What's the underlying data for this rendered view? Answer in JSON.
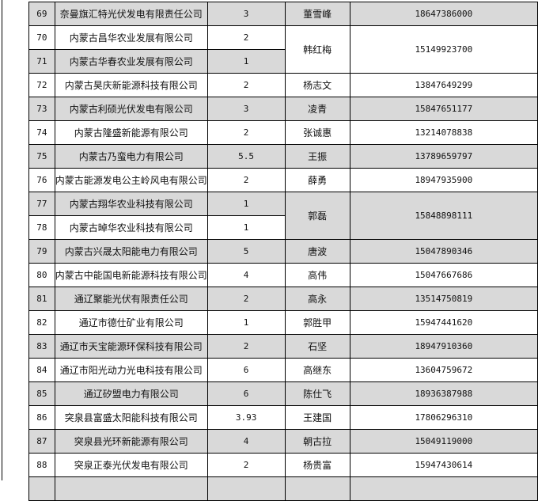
{
  "table": {
    "rows": [
      {
        "no": "69",
        "company": "奈曼旗汇特光伏发电有限责任公司",
        "capacity": "3",
        "contact": "董雪峰",
        "phone": "18647386000"
      },
      {
        "no": "70",
        "company": "内蒙古昌华农业发展有限公司",
        "capacity": "2",
        "contact": "韩红梅",
        "phone": "15149923700"
      },
      {
        "no": "71",
        "company": "内蒙古华春农业发展有限公司",
        "capacity": "1"
      },
      {
        "no": "72",
        "company": "内蒙古昊庆新能源科技有限公司",
        "capacity": "2",
        "contact": "杨志文",
        "phone": "13847649299"
      },
      {
        "no": "73",
        "company": "内蒙古利硕光伏发电有限公司",
        "capacity": "3",
        "contact": "凌青",
        "phone": "15847651177"
      },
      {
        "no": "74",
        "company": "内蒙古隆盛新能源有限公司",
        "capacity": "2",
        "contact": "张诚惠",
        "phone": "13214078838"
      },
      {
        "no": "75",
        "company": "内蒙古乃蛮电力有限公司",
        "capacity": "5.5",
        "contact": "王振",
        "phone": "13789659797"
      },
      {
        "no": "76",
        "company": "内蒙古能源发电公主岭风电有限公司",
        "capacity": "2",
        "contact": "薛勇",
        "phone": "18947935900"
      },
      {
        "no": "77",
        "company": "内蒙古翔华农业科技有限公司",
        "capacity": "1",
        "contact": "郭磊",
        "phone": "15848898111"
      },
      {
        "no": "78",
        "company": "内蒙古晫华农业科技有限公司",
        "capacity": "1"
      },
      {
        "no": "79",
        "company": "内蒙古兴晟太阳能电力有限公司",
        "capacity": "5",
        "contact": "唐波",
        "phone": "15047890346"
      },
      {
        "no": "80",
        "company": "内蒙古中能国电新能源科技有限公司",
        "capacity": "4",
        "contact": "高伟",
        "phone": "15047667686"
      },
      {
        "no": "81",
        "company": "通辽聚能光伏有限责任公司",
        "capacity": "2",
        "contact": "高永",
        "phone": "13514750819"
      },
      {
        "no": "82",
        "company": "通辽市德仕矿业有限公司",
        "capacity": "1",
        "contact": "郭胜甲",
        "phone": "15947441620"
      },
      {
        "no": "83",
        "company": "通辽市天宝能源环保科技有限公司",
        "capacity": "2",
        "contact": "石坚",
        "phone": "18947910360"
      },
      {
        "no": "84",
        "company": "通辽市阳光动力光电科技有限公司",
        "capacity": "6",
        "contact": "高继东",
        "phone": "13604759672"
      },
      {
        "no": "85",
        "company": "通辽矽盟电力有限公司",
        "capacity": "6",
        "contact": "陈仕飞",
        "phone": "18936387988"
      },
      {
        "no": "86",
        "company": "突泉县富盛太阳能科技有限公司",
        "capacity": "3.93",
        "contact": "王建国",
        "phone": "17806296310"
      },
      {
        "no": "87",
        "company": "突泉县光环新能源有限公司",
        "capacity": "4",
        "contact": "朝古拉",
        "phone": "15049119000"
      },
      {
        "no": "88",
        "company": "突泉正泰光伏发电有限公司",
        "capacity": "2",
        "contact": "杨贵富",
        "phone": "15947430614"
      }
    ]
  },
  "colors": {
    "row_shade": "#d9d9d9",
    "border": "#000000"
  }
}
